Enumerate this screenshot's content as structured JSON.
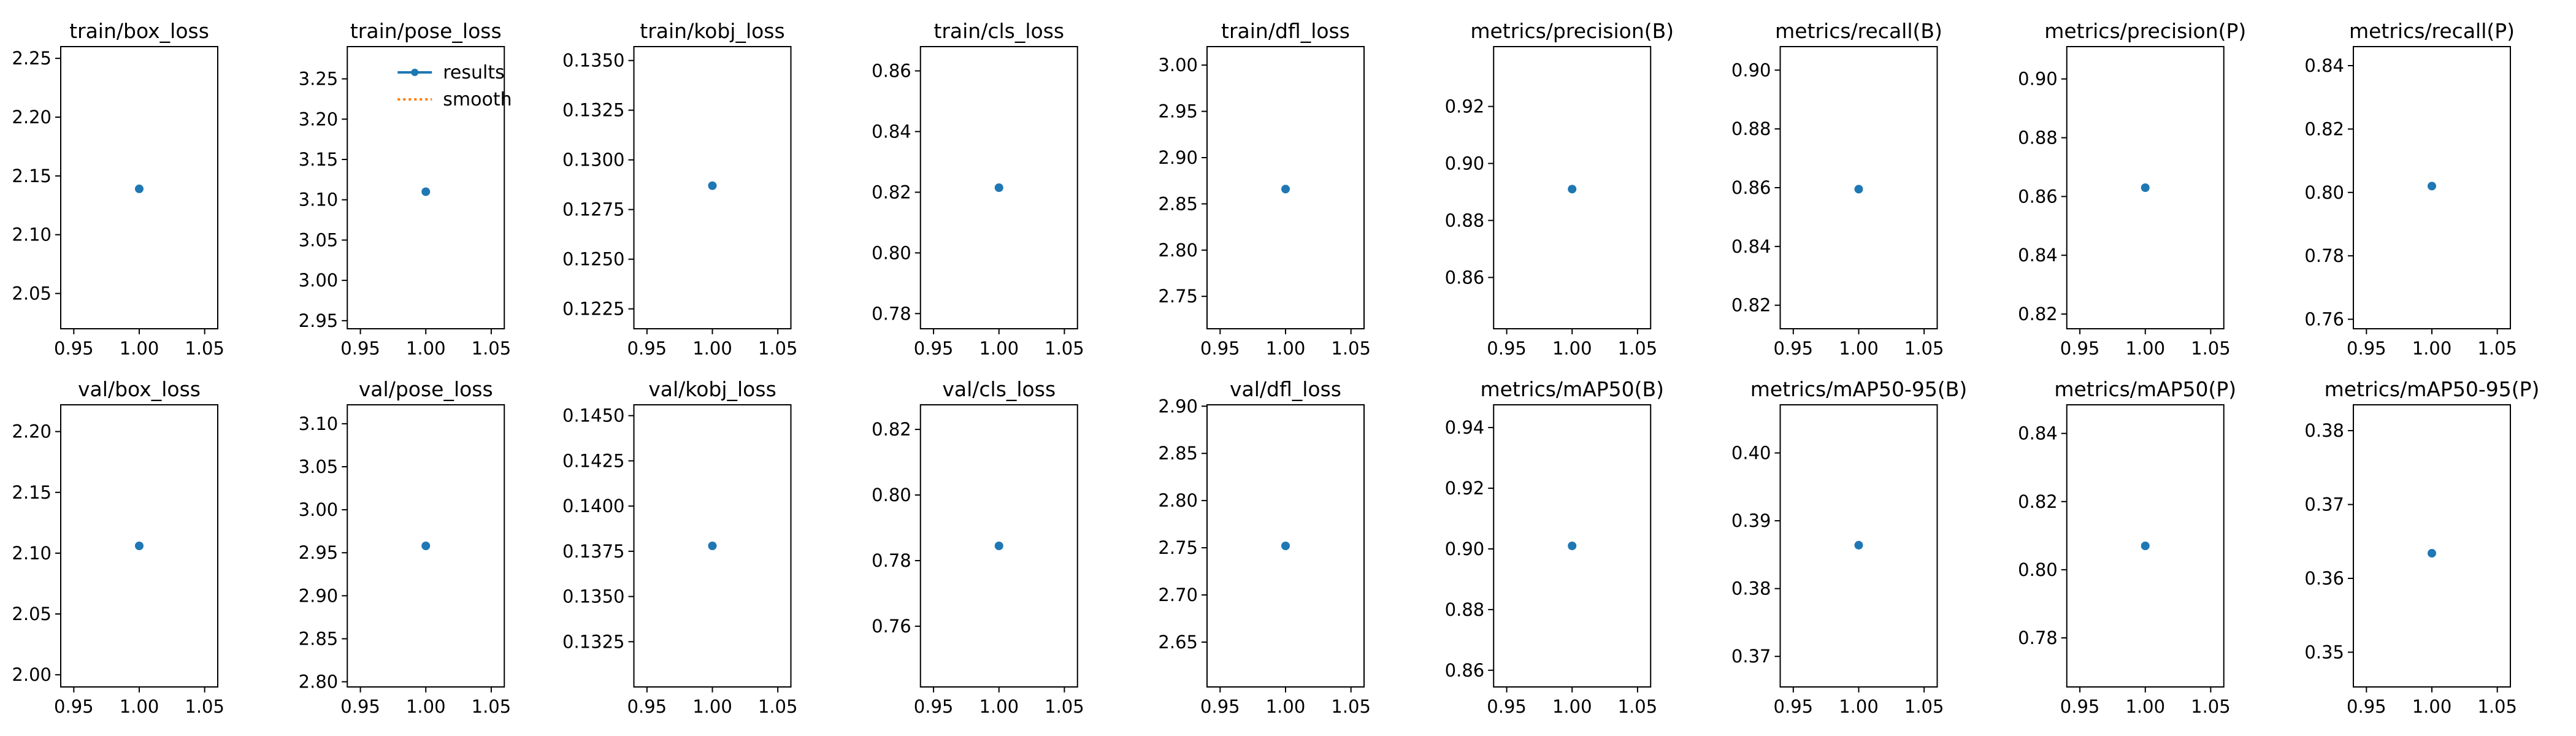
{
  "chart_data": [
    {
      "type": "scatter",
      "title": "train/box_loss",
      "x": [
        1.0
      ],
      "y": [
        2.139
      ],
      "xlim": [
        0.94,
        1.06
      ],
      "ylim": [
        2.02,
        2.26
      ],
      "xticks": [
        "0.95",
        "1.00",
        "1.05"
      ],
      "yticks": [
        {
          "v": 2.05,
          "l": "2.05"
        },
        {
          "v": 2.1,
          "l": "2.10"
        },
        {
          "v": 2.15,
          "l": "2.15"
        },
        {
          "v": 2.2,
          "l": "2.20"
        },
        {
          "v": 2.25,
          "l": "2.25"
        }
      ]
    },
    {
      "type": "scatter",
      "title": "train/pose_loss",
      "x": [
        1.0
      ],
      "y": [
        3.11
      ],
      "xlim": [
        0.94,
        1.06
      ],
      "ylim": [
        2.94,
        3.29
      ],
      "xticks": [
        "0.95",
        "1.00",
        "1.05"
      ],
      "yticks": [
        {
          "v": 2.95,
          "l": "2.95"
        },
        {
          "v": 3.0,
          "l": "3.00"
        },
        {
          "v": 3.05,
          "l": "3.05"
        },
        {
          "v": 3.1,
          "l": "3.10"
        },
        {
          "v": 3.15,
          "l": "3.15"
        },
        {
          "v": 3.2,
          "l": "3.20"
        },
        {
          "v": 3.25,
          "l": "3.25"
        }
      ]
    },
    {
      "type": "scatter",
      "title": "train/kobj_loss",
      "x": [
        1.0
      ],
      "y": [
        0.1287
      ],
      "xlim": [
        0.94,
        1.06
      ],
      "ylim": [
        0.1215,
        0.1357
      ],
      "xticks": [
        "0.95",
        "1.00",
        "1.05"
      ],
      "yticks": [
        {
          "v": 0.1225,
          "l": "0.1225"
        },
        {
          "v": 0.125,
          "l": "0.1250"
        },
        {
          "v": 0.1275,
          "l": "0.1275"
        },
        {
          "v": 0.13,
          "l": "0.1300"
        },
        {
          "v": 0.1325,
          "l": "0.1325"
        },
        {
          "v": 0.135,
          "l": "0.1350"
        }
      ]
    },
    {
      "type": "scatter",
      "title": "train/cls_loss",
      "x": [
        1.0
      ],
      "y": [
        0.8215
      ],
      "xlim": [
        0.94,
        1.06
      ],
      "ylim": [
        0.775,
        0.868
      ],
      "xticks": [
        "0.95",
        "1.00",
        "1.05"
      ],
      "yticks": [
        {
          "v": 0.78,
          "l": "0.78"
        },
        {
          "v": 0.8,
          "l": "0.80"
        },
        {
          "v": 0.82,
          "l": "0.82"
        },
        {
          "v": 0.84,
          "l": "0.84"
        },
        {
          "v": 0.86,
          "l": "0.86"
        }
      ]
    },
    {
      "type": "scatter",
      "title": "train/dfl_loss",
      "x": [
        1.0
      ],
      "y": [
        2.866
      ],
      "xlim": [
        0.94,
        1.06
      ],
      "ylim": [
        2.715,
        3.02
      ],
      "xticks": [
        "0.95",
        "1.00",
        "1.05"
      ],
      "yticks": [
        {
          "v": 2.75,
          "l": "2.75"
        },
        {
          "v": 2.8,
          "l": "2.80"
        },
        {
          "v": 2.85,
          "l": "2.85"
        },
        {
          "v": 2.9,
          "l": "2.90"
        },
        {
          "v": 2.95,
          "l": "2.95"
        },
        {
          "v": 3.0,
          "l": "3.00"
        }
      ]
    },
    {
      "type": "scatter",
      "title": "metrics/precision(B)",
      "x": [
        1.0
      ],
      "y": [
        0.891
      ],
      "xlim": [
        0.94,
        1.06
      ],
      "ylim": [
        0.842,
        0.941
      ],
      "xticks": [
        "0.95",
        "1.00",
        "1.05"
      ],
      "yticks": [
        {
          "v": 0.86,
          "l": "0.86"
        },
        {
          "v": 0.88,
          "l": "0.88"
        },
        {
          "v": 0.9,
          "l": "0.90"
        },
        {
          "v": 0.92,
          "l": "0.92"
        }
      ]
    },
    {
      "type": "scatter",
      "title": "metrics/recall(B)",
      "x": [
        1.0
      ],
      "y": [
        0.8595
      ],
      "xlim": [
        0.94,
        1.06
      ],
      "ylim": [
        0.812,
        0.908
      ],
      "xticks": [
        "0.95",
        "1.00",
        "1.05"
      ],
      "yticks": [
        {
          "v": 0.82,
          "l": "0.82"
        },
        {
          "v": 0.84,
          "l": "0.84"
        },
        {
          "v": 0.86,
          "l": "0.86"
        },
        {
          "v": 0.88,
          "l": "0.88"
        },
        {
          "v": 0.9,
          "l": "0.90"
        }
      ]
    },
    {
      "type": "scatter",
      "title": "metrics/precision(P)",
      "x": [
        1.0
      ],
      "y": [
        0.863
      ],
      "xlim": [
        0.94,
        1.06
      ],
      "ylim": [
        0.815,
        0.911
      ],
      "xticks": [
        "0.95",
        "1.00",
        "1.05"
      ],
      "yticks": [
        {
          "v": 0.82,
          "l": "0.82"
        },
        {
          "v": 0.84,
          "l": "0.84"
        },
        {
          "v": 0.86,
          "l": "0.86"
        },
        {
          "v": 0.88,
          "l": "0.88"
        },
        {
          "v": 0.9,
          "l": "0.90"
        }
      ]
    },
    {
      "type": "scatter",
      "title": "metrics/recall(P)",
      "x": [
        1.0
      ],
      "y": [
        0.802
      ],
      "xlim": [
        0.94,
        1.06
      ],
      "ylim": [
        0.757,
        0.846
      ],
      "xticks": [
        "0.95",
        "1.00",
        "1.05"
      ],
      "yticks": [
        {
          "v": 0.76,
          "l": "0.76"
        },
        {
          "v": 0.78,
          "l": "0.78"
        },
        {
          "v": 0.8,
          "l": "0.80"
        },
        {
          "v": 0.82,
          "l": "0.82"
        },
        {
          "v": 0.84,
          "l": "0.84"
        }
      ]
    },
    {
      "type": "scatter",
      "title": "val/box_loss",
      "x": [
        1.0
      ],
      "y": [
        2.106
      ],
      "xlim": [
        0.94,
        1.06
      ],
      "ylim": [
        1.99,
        2.222
      ],
      "xticks": [
        "0.95",
        "1.00",
        "1.05"
      ],
      "yticks": [
        {
          "v": 2.0,
          "l": "2.00"
        },
        {
          "v": 2.05,
          "l": "2.05"
        },
        {
          "v": 2.1,
          "l": "2.10"
        },
        {
          "v": 2.15,
          "l": "2.15"
        },
        {
          "v": 2.2,
          "l": "2.20"
        }
      ]
    },
    {
      "type": "scatter",
      "title": "val/pose_loss",
      "x": [
        1.0
      ],
      "y": [
        2.958
      ],
      "xlim": [
        0.94,
        1.06
      ],
      "ylim": [
        2.794,
        3.122
      ],
      "xticks": [
        "0.95",
        "1.00",
        "1.05"
      ],
      "yticks": [
        {
          "v": 2.8,
          "l": "2.80"
        },
        {
          "v": 2.85,
          "l": "2.85"
        },
        {
          "v": 2.9,
          "l": "2.90"
        },
        {
          "v": 2.95,
          "l": "2.95"
        },
        {
          "v": 3.0,
          "l": "3.00"
        },
        {
          "v": 3.05,
          "l": "3.05"
        },
        {
          "v": 3.1,
          "l": "3.10"
        }
      ]
    },
    {
      "type": "scatter",
      "title": "val/kobj_loss",
      "x": [
        1.0
      ],
      "y": [
        0.1378
      ],
      "xlim": [
        0.94,
        1.06
      ],
      "ylim": [
        0.13,
        0.1456
      ],
      "xticks": [
        "0.95",
        "1.00",
        "1.05"
      ],
      "yticks": [
        {
          "v": 0.1325,
          "l": "0.1325"
        },
        {
          "v": 0.135,
          "l": "0.1350"
        },
        {
          "v": 0.1375,
          "l": "0.1375"
        },
        {
          "v": 0.14,
          "l": "0.1400"
        },
        {
          "v": 0.1425,
          "l": "0.1425"
        },
        {
          "v": 0.145,
          "l": "0.1450"
        }
      ]
    },
    {
      "type": "scatter",
      "title": "val/cls_loss",
      "x": [
        1.0
      ],
      "y": [
        0.7845
      ],
      "xlim": [
        0.94,
        1.06
      ],
      "ylim": [
        0.7415,
        0.8275
      ],
      "xticks": [
        "0.95",
        "1.00",
        "1.05"
      ],
      "yticks": [
        {
          "v": 0.76,
          "l": "0.76"
        },
        {
          "v": 0.78,
          "l": "0.78"
        },
        {
          "v": 0.8,
          "l": "0.80"
        },
        {
          "v": 0.82,
          "l": "0.82"
        }
      ]
    },
    {
      "type": "scatter",
      "title": "val/dfl_loss",
      "x": [
        1.0
      ],
      "y": [
        2.752
      ],
      "xlim": [
        0.94,
        1.06
      ],
      "ylim": [
        2.6025,
        2.9015
      ],
      "xticks": [
        "0.95",
        "1.00",
        "1.05"
      ],
      "yticks": [
        {
          "v": 2.65,
          "l": "2.65"
        },
        {
          "v": 2.7,
          "l": "2.70"
        },
        {
          "v": 2.75,
          "l": "2.75"
        },
        {
          "v": 2.8,
          "l": "2.80"
        },
        {
          "v": 2.85,
          "l": "2.85"
        },
        {
          "v": 2.9,
          "l": "2.90"
        }
      ]
    },
    {
      "type": "scatter",
      "title": "metrics/mAP50(B)",
      "x": [
        1.0
      ],
      "y": [
        0.901
      ],
      "xlim": [
        0.94,
        1.06
      ],
      "ylim": [
        0.8545,
        0.9475
      ],
      "xticks": [
        "0.95",
        "1.00",
        "1.05"
      ],
      "yticks": [
        {
          "v": 0.86,
          "l": "0.86"
        },
        {
          "v": 0.88,
          "l": "0.88"
        },
        {
          "v": 0.9,
          "l": "0.90"
        },
        {
          "v": 0.92,
          "l": "0.92"
        },
        {
          "v": 0.94,
          "l": "0.94"
        }
      ]
    },
    {
      "type": "scatter",
      "title": "metrics/mAP50-95(B)",
      "x": [
        1.0
      ],
      "y": [
        0.3864
      ],
      "xlim": [
        0.94,
        1.06
      ],
      "ylim": [
        0.3655,
        0.4071
      ],
      "xticks": [
        "0.95",
        "1.00",
        "1.05"
      ],
      "yticks": [
        {
          "v": 0.37,
          "l": "0.37"
        },
        {
          "v": 0.38,
          "l": "0.38"
        },
        {
          "v": 0.39,
          "l": "0.39"
        },
        {
          "v": 0.4,
          "l": "0.40"
        }
      ]
    },
    {
      "type": "scatter",
      "title": "metrics/mAP50(P)",
      "x": [
        1.0
      ],
      "y": [
        0.807
      ],
      "xlim": [
        0.94,
        1.06
      ],
      "ylim": [
        0.7656,
        0.8484
      ],
      "xticks": [
        "0.95",
        "1.00",
        "1.05"
      ],
      "yticks": [
        {
          "v": 0.78,
          "l": "0.78"
        },
        {
          "v": 0.8,
          "l": "0.80"
        },
        {
          "v": 0.82,
          "l": "0.82"
        },
        {
          "v": 0.84,
          "l": "0.84"
        }
      ]
    },
    {
      "type": "scatter",
      "title": "metrics/mAP50-95(P)",
      "x": [
        1.0
      ],
      "y": [
        0.3634
      ],
      "xlim": [
        0.94,
        1.06
      ],
      "ylim": [
        0.3453,
        0.3835
      ],
      "xticks": [
        "0.95",
        "1.00",
        "1.05"
      ],
      "yticks": [
        {
          "v": 0.35,
          "l": "0.35"
        },
        {
          "v": 0.36,
          "l": "0.36"
        },
        {
          "v": 0.37,
          "l": "0.37"
        },
        {
          "v": 0.38,
          "l": "0.38"
        }
      ]
    }
  ],
  "legend": {
    "placement": "top-right",
    "panel": "train/pose_loss",
    "items": [
      {
        "label": "results",
        "color": "#1f77b4",
        "style": "solid"
      },
      {
        "label": "smooth",
        "color": "#ff7f0e",
        "style": "dotted"
      }
    ]
  },
  "colors": {
    "point": "#1f77b4",
    "smooth": "#ff7f0e"
  }
}
